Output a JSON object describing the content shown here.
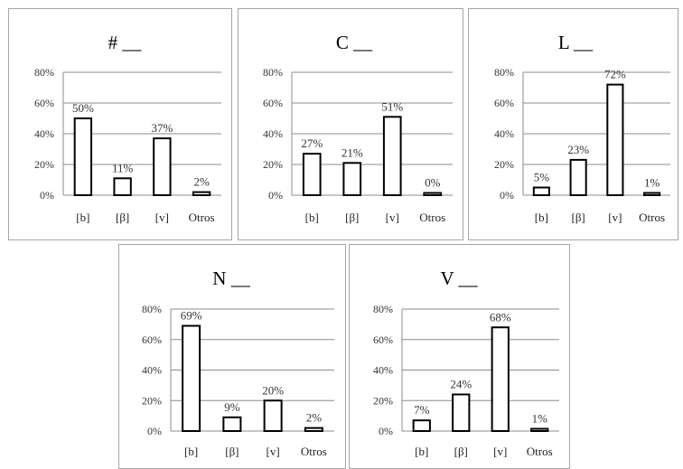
{
  "chart_data": [
    {
      "type": "bar",
      "title": "# __",
      "categories": [
        "[b]",
        "[β]",
        "[v]",
        "Otros"
      ],
      "values": [
        50,
        11,
        37,
        2
      ],
      "data_labels": [
        "50%",
        "11%",
        "37%",
        "2%"
      ],
      "yticks": [
        "0%",
        "20%",
        "40%",
        "60%",
        "80%"
      ],
      "ylim": [
        0,
        80
      ],
      "grid": true
    },
    {
      "type": "bar",
      "title": "C __",
      "categories": [
        "[b]",
        "[β]",
        "[v]",
        "Otros"
      ],
      "values": [
        27,
        21,
        51,
        0
      ],
      "data_labels": [
        "27%",
        "21%",
        "51%",
        "0%"
      ],
      "yticks": [
        "0%",
        "20%",
        "40%",
        "60%",
        "80%"
      ],
      "ylim": [
        0,
        80
      ],
      "grid": true
    },
    {
      "type": "bar",
      "title": "L __",
      "categories": [
        "[b]",
        "[β]",
        "[v]",
        "Otros"
      ],
      "values": [
        5,
        23,
        72,
        1
      ],
      "data_labels": [
        "5%",
        "23%",
        "72%",
        "1%"
      ],
      "yticks": [
        "0%",
        "20%",
        "40%",
        "60%",
        "80%"
      ],
      "ylim": [
        0,
        80
      ],
      "grid": true
    },
    {
      "type": "bar",
      "title": "N __",
      "categories": [
        "[b]",
        "[β]",
        "[v]",
        "Otros"
      ],
      "values": [
        69,
        9,
        20,
        2
      ],
      "data_labels": [
        "69%",
        "9%",
        "20%",
        "2%"
      ],
      "yticks": [
        "0%",
        "20%",
        "40%",
        "60%",
        "80%"
      ],
      "ylim": [
        0,
        80
      ],
      "grid": true
    },
    {
      "type": "bar",
      "title": "V __",
      "categories": [
        "[b]",
        "[β]",
        "[v]",
        "Otros"
      ],
      "values": [
        7,
        24,
        68,
        1
      ],
      "data_labels": [
        "7%",
        "24%",
        "68%",
        "1%"
      ],
      "yticks": [
        "0%",
        "20%",
        "40%",
        "60%",
        "80%"
      ],
      "ylim": [
        0,
        80
      ],
      "grid": true
    }
  ]
}
